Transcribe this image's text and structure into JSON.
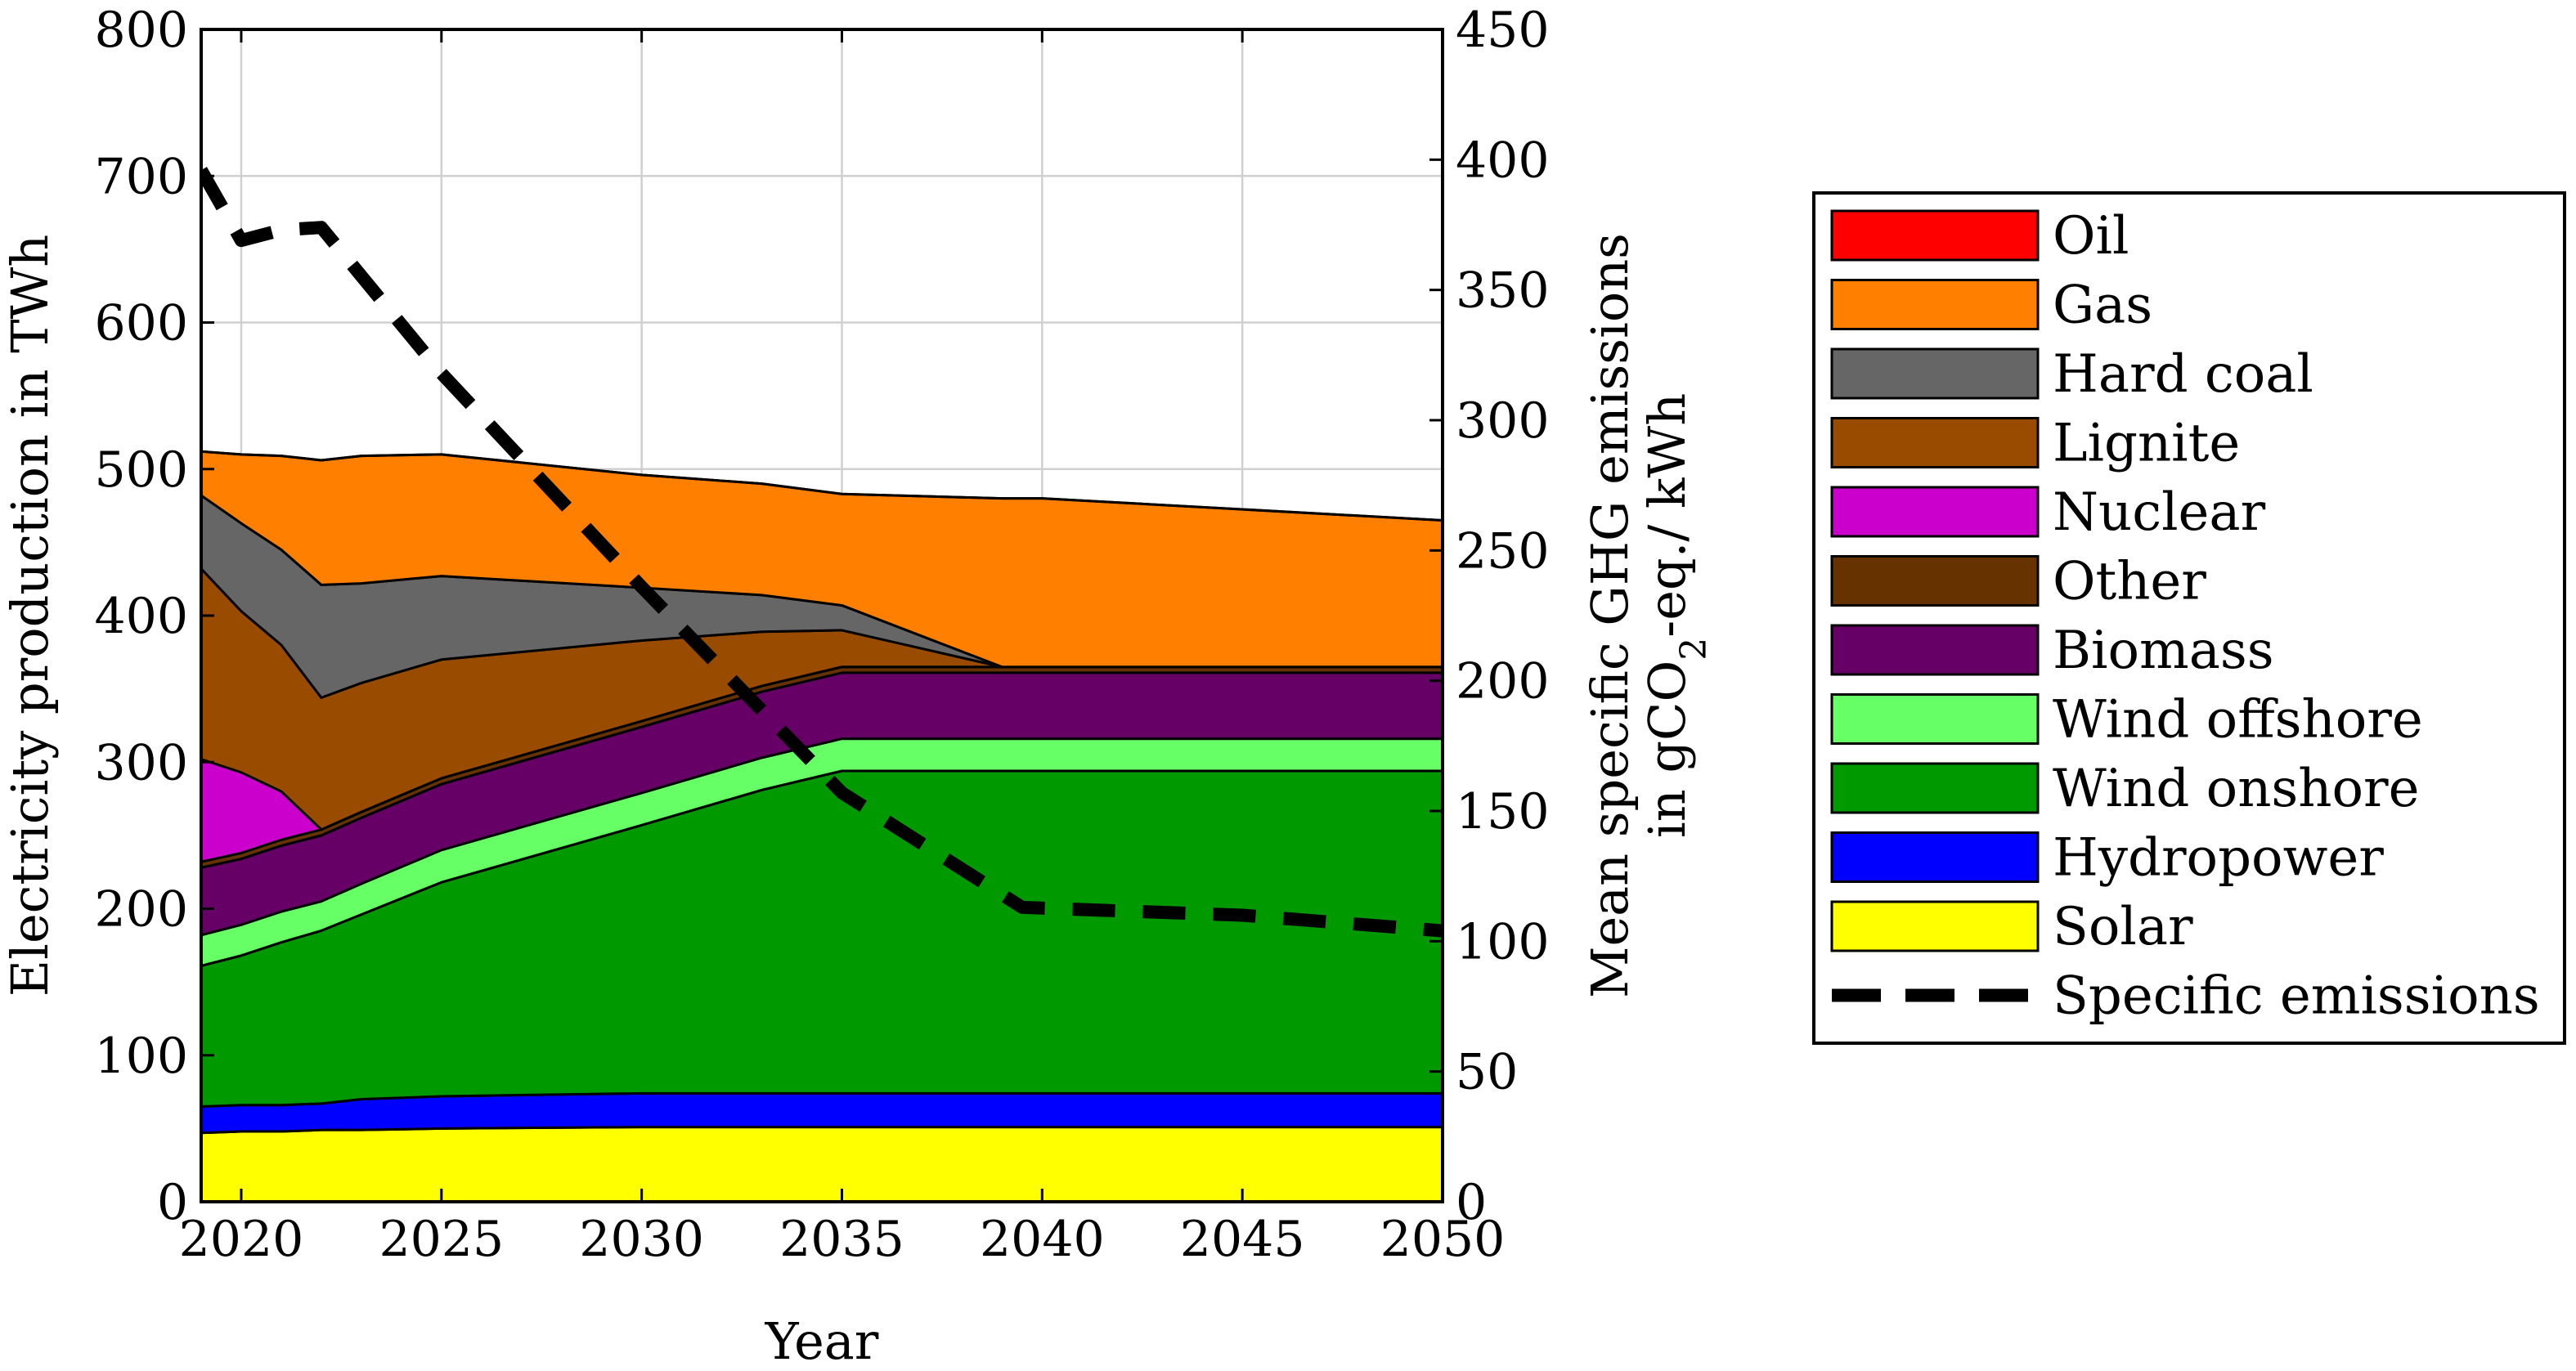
{
  "chart_data": {
    "type": "area",
    "stacked": true,
    "x": [
      2019,
      2020,
      2021,
      2022,
      2023,
      2025,
      2030,
      2033,
      2035,
      2039,
      2040,
      2050
    ],
    "xlabel": "Year",
    "ylabel_left": "Electricity production in TWh",
    "ylabel_right_line1": "Mean specific GHG emissions",
    "ylabel_right_line2_pre": "in gCO",
    "ylabel_right_sub": "2",
    "ylabel_right_line2_post": "-eq./ kWh",
    "xlim": [
      2019,
      2050
    ],
    "ylim_left": [
      0,
      800
    ],
    "ylim_right": [
      0,
      450
    ],
    "x_ticks": [
      "2020",
      "2025",
      "2030",
      "2035",
      "2040",
      "2045",
      "2050"
    ],
    "y_ticks_left": [
      "0",
      "100",
      "200",
      "300",
      "400",
      "500",
      "600",
      "700",
      "800"
    ],
    "y_ticks_right": [
      "0",
      "50",
      "100",
      "150",
      "200",
      "250",
      "300",
      "350",
      "400",
      "450"
    ],
    "grid": true,
    "legend_position": "right",
    "series": [
      {
        "name": "Solar",
        "color": "#FFFF00",
        "values": [
          47,
          48,
          48,
          49,
          49,
          50,
          51,
          51,
          51,
          51,
          51,
          51
        ]
      },
      {
        "name": "Hydropower",
        "color": "#0000FF",
        "values": [
          18,
          18,
          18,
          18,
          21,
          22,
          23,
          23,
          23,
          23,
          23,
          23
        ]
      },
      {
        "name": "Wind onshore",
        "color": "#009900",
        "values": [
          96,
          102,
          111,
          118,
          126,
          146,
          183,
          207,
          220,
          220,
          220,
          220
        ]
      },
      {
        "name": "Wind offshore",
        "color": "#66FF66",
        "values": [
          21,
          21,
          21,
          20,
          21,
          22,
          22,
          22,
          22,
          22,
          22,
          22
        ]
      },
      {
        "name": "Biomass",
        "color": "#660066",
        "values": [
          46,
          45,
          45,
          45,
          45,
          45,
          45,
          45,
          45,
          45,
          45,
          45
        ]
      },
      {
        "name": "Other",
        "color": "#663300",
        "values": [
          4,
          4,
          4,
          4,
          4,
          4,
          4,
          4,
          4,
          4,
          4,
          4
        ]
      },
      {
        "name": "Nuclear",
        "color": "#CC00CC",
        "values": [
          70,
          55,
          33,
          0,
          0,
          0,
          0,
          0,
          0,
          0,
          0,
          0
        ]
      },
      {
        "name": "Lignite",
        "color": "#994C00",
        "values": [
          130,
          110,
          100,
          90,
          88,
          81,
          55,
          37,
          25,
          0,
          0,
          0
        ]
      },
      {
        "name": "Hard coal",
        "color": "#666666",
        "values": [
          50,
          60,
          65,
          77,
          68,
          57,
          36,
          25,
          17,
          0,
          0,
          0
        ]
      },
      {
        "name": "Gas",
        "color": "#FF8000",
        "values": [
          30,
          47,
          64,
          85,
          87,
          83,
          77,
          76,
          76,
          115,
          115,
          100
        ]
      },
      {
        "name": "Oil",
        "color": "#FF0000",
        "values": [
          0,
          0,
          0,
          0,
          0,
          0,
          0,
          0,
          0,
          0,
          0,
          0
        ]
      }
    ],
    "line_series": {
      "name": "Specific emissions",
      "axis": "right",
      "color": "#000000",
      "x": [
        2019,
        2020,
        2021,
        2022,
        2025,
        2030,
        2035,
        2039.5,
        2045,
        2050
      ],
      "values": [
        396,
        369,
        373,
        374,
        318,
        236,
        157,
        113,
        110,
        104
      ]
    },
    "legend_order": [
      "Oil",
      "Gas",
      "Hard coal",
      "Lignite",
      "Nuclear",
      "Other",
      "Biomass",
      "Wind offshore",
      "Wind onshore",
      "Hydropower",
      "Solar",
      "Specific emissions"
    ]
  }
}
